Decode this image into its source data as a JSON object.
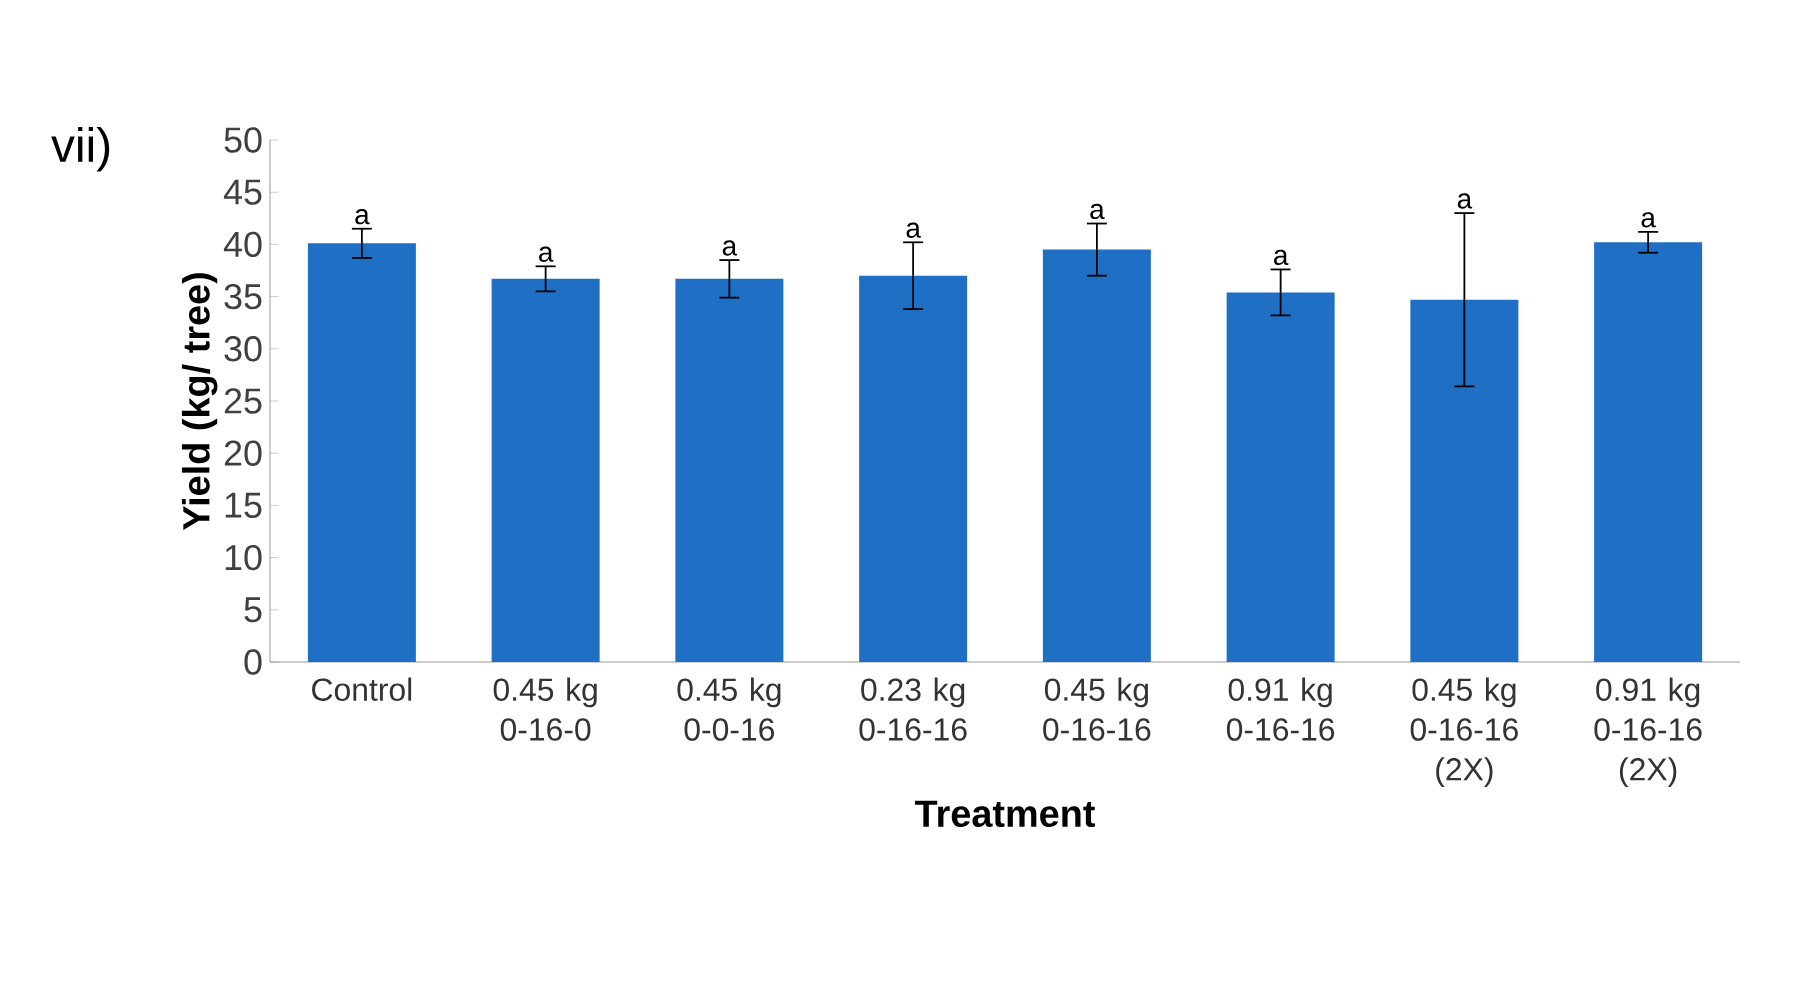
{
  "chart_data": {
    "type": "bar",
    "xlabel": "Treatment",
    "ylabel": "Yield (kg/ tree)",
    "categories": [
      "Control",
      "0.45 kg 0-16-0",
      "0.45 kg 0-0-16",
      "0.23 kg 0-16-16",
      "0.45 kg 0-16-16",
      "0.91 kg 0-16-16",
      "0.45 kg 0-16-16 (2X)",
      "0.91 kg 0-16-16 (2X)"
    ],
    "values": [
      40.1,
      36.7,
      36.7,
      37.0,
      39.5,
      35.4,
      34.7,
      40.2
    ],
    "errors": [
      1.4,
      1.2,
      1.8,
      3.2,
      2.5,
      2.2,
      8.3,
      1.0
    ],
    "color": "#1f6fc5",
    "ylim": [
      0,
      50
    ],
    "yticks": [
      0,
      5,
      10,
      15,
      20,
      25,
      30,
      35,
      40,
      45,
      50
    ],
    "grid": false,
    "annotations": [
      "vii)",
      {
        "text": "a",
        "x": "Control",
        "y": 41.5
      },
      {
        "text": "a",
        "x": "0.45 kg 0-16-0",
        "y": 37.9
      },
      {
        "text": "a",
        "x": "0.45 kg 0-0-16",
        "y": 38.5
      },
      {
        "text": "a",
        "x": "0.23 kg 0-16-16",
        "y": 40.2
      },
      {
        "text": "a",
        "x": "0.45 kg 0-16-16",
        "y": 42.0
      },
      {
        "text": "a",
        "x": "0.91 kg 0-16-16",
        "y": 37.6
      },
      {
        "text": "a",
        "x": "0.45 kg 0-16-16 (2X)",
        "y": 43.0
      },
      {
        "text": "a",
        "x": "0.91 kg 0-16-16 (2X)",
        "y": 41.2
      }
    ]
  }
}
